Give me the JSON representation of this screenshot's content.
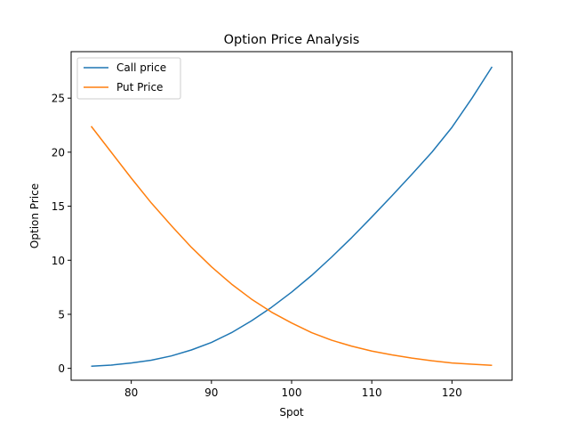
{
  "chart_data": {
    "type": "line",
    "title": "Option Price Analysis",
    "xlabel": "Spot",
    "ylabel": "Option Price",
    "xlim": [
      72.5,
      127.5
    ],
    "ylim": [
      -1.1,
      29.3
    ],
    "xticks": [
      80,
      90,
      100,
      110,
      120
    ],
    "yticks": [
      0,
      5,
      10,
      15,
      20,
      25
    ],
    "grid": false,
    "legend_position": "top-left",
    "x": [
      75,
      77.5,
      80,
      82.5,
      85,
      87.5,
      90,
      92.5,
      95,
      97.5,
      100,
      102.5,
      105,
      107.5,
      110,
      112.5,
      115,
      117.5,
      120,
      122.5,
      125
    ],
    "series": [
      {
        "name": "Call price",
        "color": "#1f77b4",
        "values": [
          0.2,
          0.3,
          0.5,
          0.75,
          1.15,
          1.7,
          2.4,
          3.3,
          4.4,
          5.65,
          7.05,
          8.6,
          10.3,
          12.1,
          14.0,
          15.95,
          17.95,
          20.0,
          22.3,
          25.0,
          27.9
        ]
      },
      {
        "name": "Put Price",
        "color": "#ff7f0e",
        "values": [
          22.4,
          20.0,
          17.6,
          15.3,
          13.2,
          11.2,
          9.4,
          7.8,
          6.4,
          5.2,
          4.2,
          3.3,
          2.6,
          2.05,
          1.6,
          1.25,
          0.95,
          0.7,
          0.5,
          0.38,
          0.28
        ]
      }
    ]
  }
}
